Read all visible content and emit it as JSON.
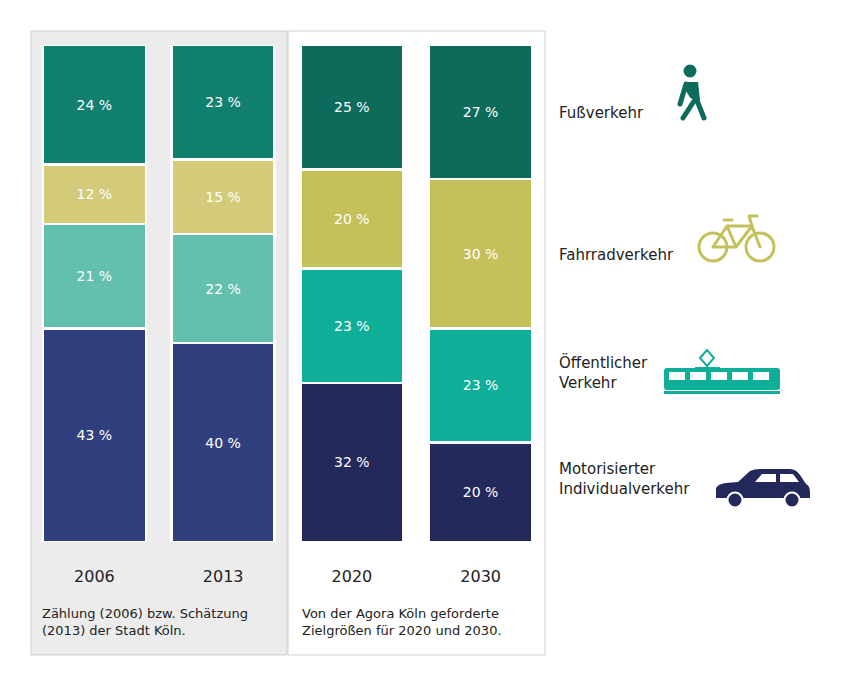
{
  "chart_data": {
    "type": "bar",
    "stacked": true,
    "data_labels": true,
    "tick_labels": "x",
    "grid": false,
    "legend": "right",
    "categories": [
      "2006",
      "2013",
      "2020",
      "2030"
    ],
    "ylim": [
      0,
      100
    ],
    "series": [
      {
        "name": "Fußverkehr",
        "colors": [
          "#11806f",
          "#11806f",
          "#0d6b5c",
          "#0d6b5c"
        ],
        "values": [
          24,
          23,
          25,
          27
        ],
        "value_labels": [
          "24 %",
          "23 %",
          "25 %",
          "27 %"
        ]
      },
      {
        "name": "Fahrradverkehr",
        "colors": [
          "#d3cb7a",
          "#d3cb7a",
          "#c5c15a",
          "#c5c15a"
        ],
        "values": [
          12,
          15,
          20,
          30
        ],
        "value_labels": [
          "12 %",
          "15 %",
          "20 %",
          "30 %"
        ]
      },
      {
        "name": "Öffentlicher Verkehr",
        "colors": [
          "#63bfae",
          "#63bfae",
          "#0fae98",
          "#0fae98"
        ],
        "values": [
          21,
          22,
          23,
          23
        ],
        "value_labels": [
          "21 %",
          "22 %",
          "23 %",
          "23 %"
        ]
      },
      {
        "name": "Motorisierter Individualverkehr",
        "colors": [
          "#323f7e",
          "#323f7e",
          "#23295a",
          "#23295a"
        ],
        "values": [
          43,
          40,
          32,
          20
        ],
        "value_labels": [
          "43 %",
          "40 %",
          "32 %",
          "20 %"
        ]
      }
    ],
    "annotations": [
      "Zählung (2006) bzw. Schätzung\n(2013) der Stadt Köln.",
      "Von der Agora Köln geforderte\nZielgrößen für 2020 und 2030."
    ]
  }
}
